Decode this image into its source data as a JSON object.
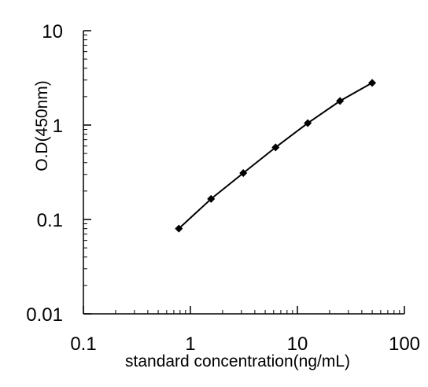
{
  "chart_data": {
    "type": "line",
    "title": "",
    "xlabel": "standard concentration(ng/mL)",
    "ylabel": "O.D(450nm)",
    "xscale": "log",
    "yscale": "log",
    "xlim": [
      0.1,
      100
    ],
    "ylim": [
      0.01,
      10
    ],
    "grid": false,
    "legend": "none",
    "x_ticks": [
      0.1,
      1,
      10,
      100
    ],
    "x_tick_labels": [
      "0.1",
      "1",
      "10",
      "100"
    ],
    "y_ticks": [
      0.01,
      0.1,
      1,
      10
    ],
    "y_tick_labels": [
      "0.01",
      "0.1",
      "1",
      "10"
    ],
    "series": [
      {
        "x": [
          0.78,
          1.56,
          3.12,
          6.25,
          12.5,
          25,
          50
        ],
        "y": [
          0.08,
          0.165,
          0.31,
          0.58,
          1.05,
          1.8,
          2.8
        ],
        "color": "#000000",
        "marker": "diamond"
      }
    ]
  }
}
